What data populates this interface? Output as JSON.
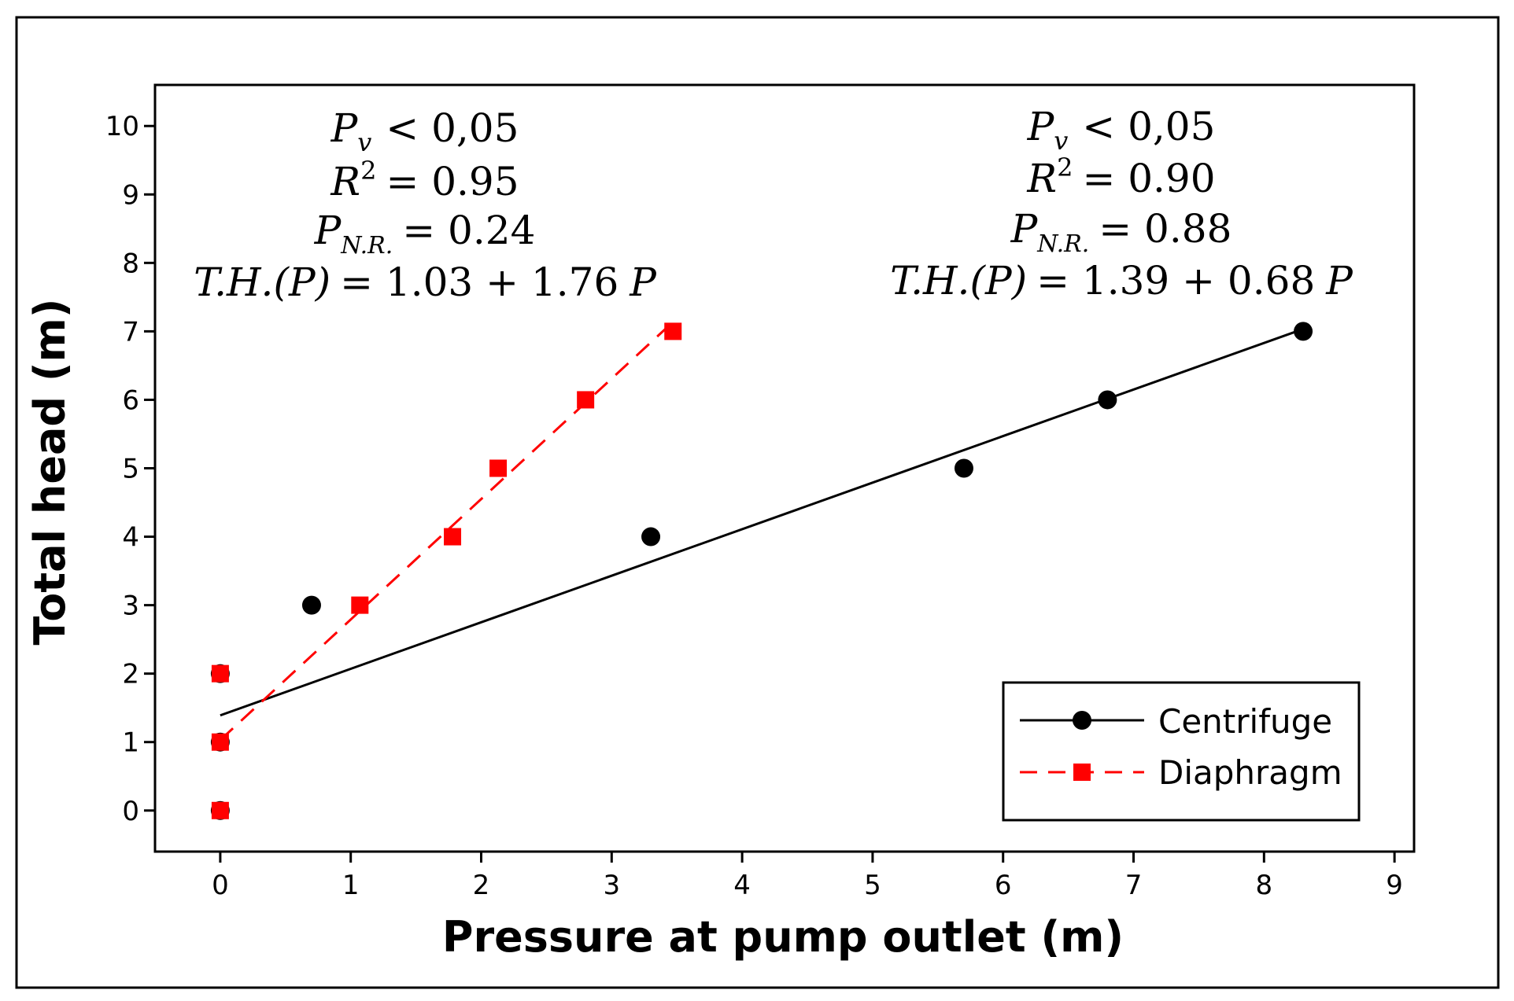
{
  "chart_data": {
    "type": "scatter",
    "xlabel": "Pressure at pump outlet (m)",
    "ylabel": "Total head (m)",
    "xlim": [
      -0.5,
      9.15
    ],
    "ylim": [
      -0.6,
      10.6
    ],
    "xticks": [
      0,
      1,
      2,
      3,
      4,
      5,
      6,
      7,
      8,
      9
    ],
    "yticks": [
      0,
      1,
      2,
      3,
      4,
      5,
      6,
      7,
      8,
      9,
      10
    ],
    "series": [
      {
        "name": "Centrifuge",
        "color": "#000000",
        "marker": "circle",
        "line_style": "solid",
        "points": [
          [
            0,
            0
          ],
          [
            0,
            1
          ],
          [
            0,
            2
          ],
          [
            0.7,
            3
          ],
          [
            3.3,
            4
          ],
          [
            5.7,
            5
          ],
          [
            6.8,
            6
          ],
          [
            8.3,
            7
          ]
        ],
        "fit": {
          "intercept": 1.39,
          "slope": 0.68,
          "x_range": [
            0,
            8.3
          ]
        }
      },
      {
        "name": "Diaphragm",
        "color": "#ff0000",
        "marker": "square",
        "line_style": "dashed",
        "points": [
          [
            0,
            0
          ],
          [
            0,
            1
          ],
          [
            0,
            2
          ],
          [
            1.07,
            3
          ],
          [
            1.78,
            4
          ],
          [
            2.13,
            5
          ],
          [
            2.8,
            6
          ],
          [
            3.47,
            7
          ]
        ],
        "fit": {
          "intercept": 1.03,
          "slope": 1.76,
          "x_range": [
            0,
            3.47
          ]
        }
      }
    ],
    "annotations": [
      {
        "id": "diaphragm-stats",
        "pv": {
          "sym": "P",
          "sub": "v",
          "rel": "< 0,05"
        },
        "r2": {
          "sym": "R",
          "sup": "2",
          "rel": "= 0.95"
        },
        "pnr": {
          "sym": "P",
          "sub": "N.R.",
          "rel": "= 0.24"
        },
        "th": {
          "lhs": "T.H.(P)",
          "rhs": "= 1.03 + 1.76",
          "var": "P"
        }
      },
      {
        "id": "centrifuge-stats",
        "pv": {
          "sym": "P",
          "sub": "v",
          "rel": "< 0,05"
        },
        "r2": {
          "sym": "R",
          "sup": "2",
          "rel": "= 0.90"
        },
        "pnr": {
          "sym": "P",
          "sub": "N.R.",
          "rel": "= 0.88"
        },
        "th": {
          "lhs": "T.H.(P)",
          "rhs": "= 1.39 + 0.68",
          "var": "P"
        }
      }
    ],
    "legend": [
      "Centrifuge",
      "Diaphragm"
    ],
    "legend_position": "lower-right"
  }
}
